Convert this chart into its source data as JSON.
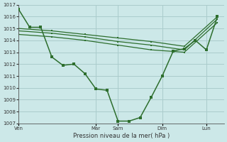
{
  "bg_color": "#cce8e8",
  "grid_color": "#aacccc",
  "line_color": "#2d6e2d",
  "title": "Pression niveau de la mer( hPa )",
  "ylim": [
    1007,
    1017
  ],
  "yticks": [
    1007,
    1008,
    1009,
    1010,
    1011,
    1012,
    1013,
    1014,
    1015,
    1016,
    1017
  ],
  "day_labels": [
    "Ven",
    "Mar",
    "Sam",
    "Dim",
    "Lun"
  ],
  "day_positions": [
    0.0,
    3.5,
    4.5,
    6.5,
    8.5
  ],
  "vlines": [
    0.0,
    3.5,
    4.5,
    6.5,
    8.5
  ],
  "xlim": [
    0,
    9.3
  ],
  "line1_x": [
    0.0,
    0.5,
    1.0,
    1.5,
    2.0,
    2.5,
    3.0,
    3.5,
    4.0,
    4.5,
    5.0,
    5.5,
    6.0,
    6.5,
    7.0,
    7.5,
    8.0,
    8.5,
    9.0
  ],
  "line1_y": [
    1016.6,
    1015.1,
    1015.1,
    1012.6,
    1011.9,
    1012.0,
    1011.2,
    1009.9,
    1009.8,
    1007.2,
    1007.2,
    1007.5,
    1009.2,
    1011.0,
    1013.1,
    1013.3,
    1014.0,
    1013.2,
    1016.0
  ],
  "line2_x": [
    0.0,
    1.5,
    3.0,
    4.5,
    6.0,
    7.5,
    9.0
  ],
  "line2_y": [
    1015.0,
    1014.8,
    1014.5,
    1014.2,
    1013.9,
    1013.5,
    1016.0
  ],
  "line3_x": [
    0.0,
    1.5,
    3.0,
    4.5,
    6.0,
    7.5,
    9.0
  ],
  "line3_y": [
    1014.8,
    1014.6,
    1014.3,
    1013.9,
    1013.6,
    1013.2,
    1015.8
  ],
  "line4_x": [
    0.0,
    1.5,
    3.0,
    4.5,
    6.0,
    7.5,
    9.0
  ],
  "line4_y": [
    1014.5,
    1014.3,
    1014.0,
    1013.6,
    1013.2,
    1013.0,
    1015.5
  ]
}
